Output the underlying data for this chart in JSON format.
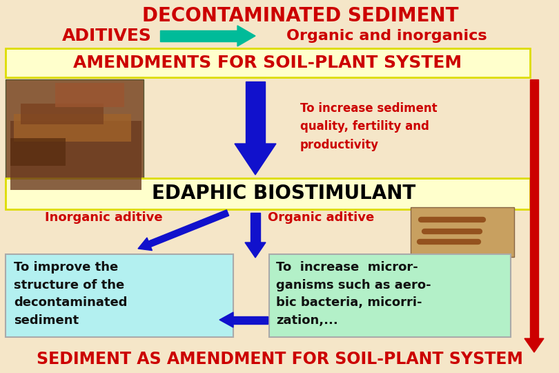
{
  "bg_color": "#f5e6c8",
  "title_line1": "DECONTAMINATED SEDIMENT",
  "title_line2_left": "ADITIVES",
  "title_line2_right": "Organic and inorganics",
  "title_color": "#cc0000",
  "amendments_text": "AMENDMENTS FOR SOIL-PLANT SYSTEM",
  "amendments_color": "#cc0000",
  "amendments_bg": "#ffffcc",
  "edaphic_text": "EDAPHIC BIOSTIMULANT",
  "edaphic_color": "#000000",
  "edaphic_bg": "#ffffcc",
  "increase_text": "To increase sediment\nquality, fertility and\nproductivity",
  "increase_color": "#cc0000",
  "inorganic_label": "Inorganic aditive",
  "organic_label": "Organic aditive",
  "labels_color": "#cc0000",
  "inorganic_box_text": "To improve the\nstructure of the\ndecontaminated\nsediment",
  "organic_box_text": "To  increase  micror-\nganisms such as aero-\nbic bacteria, micorri-\nzation,...",
  "box_text_color": "#111111",
  "inorganic_box_bg": "#b3f0f0",
  "organic_box_bg": "#b3f0c8",
  "bottom_text": "SEDIMENT AS AMENDMENT FOR SOIL-PLANT SYSTEM",
  "bottom_color": "#cc0000",
  "arrow_green_color": "#00bb99",
  "arrow_blue_color": "#1111cc",
  "arrow_red_color": "#cc0000",
  "red_bar_color": "#cc0000",
  "yellow_border": "#dddd00",
  "soil_img_color": "#8B5E3C",
  "worm_img_color": "#c8a060"
}
